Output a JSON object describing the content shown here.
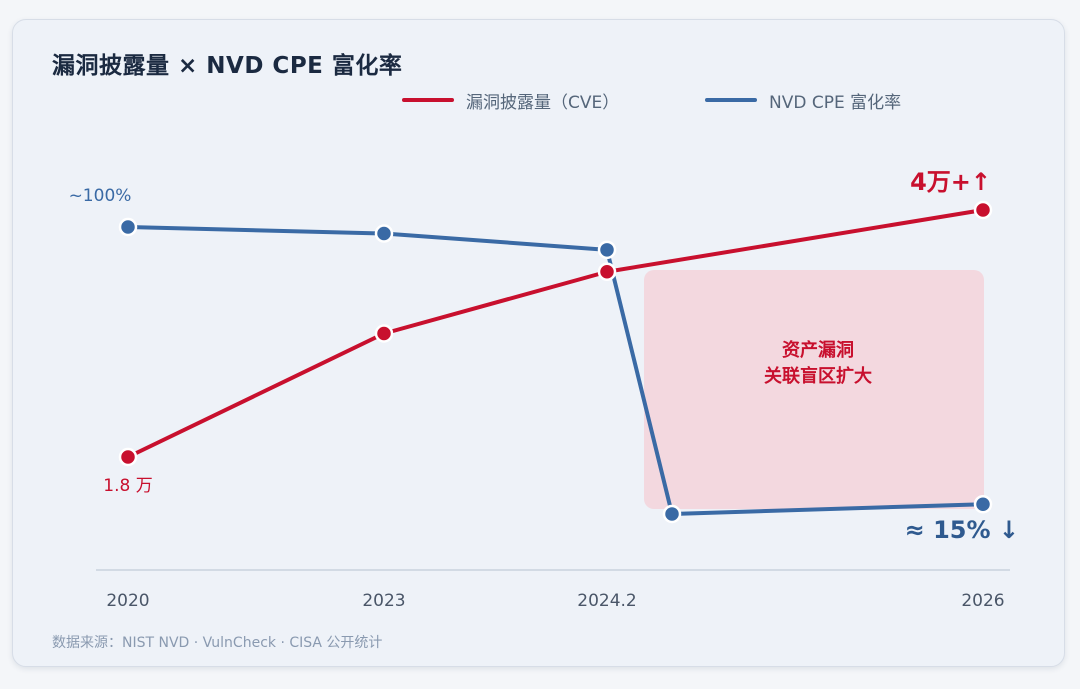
{
  "title": "漏洞披露量 × NVD CPE 富化率",
  "legend": [
    {
      "label": "漏洞披露量（CVE）",
      "color": "#c8102e"
    },
    {
      "label": "NVD CPE 富化率",
      "color": "#3a6aa5"
    }
  ],
  "footer": "数据来源：NIST NVD · VulnCheck · CISA 公开统计",
  "chart_data": {
    "type": "line",
    "title": "漏洞披露量 × NVD CPE 富化率",
    "categories": [
      "2020",
      "2023",
      "2024.2",
      "2026"
    ],
    "series": [
      {
        "name": "漏洞披露量（CVE）",
        "color": "#c8102e",
        "points": [
          {
            "x": "2020",
            "y": 18000
          },
          {
            "x": "2023",
            "y": 29000
          },
          {
            "x": "2024.2",
            "y": 34500
          },
          {
            "x": "2026",
            "y": 40000
          }
        ]
      },
      {
        "name": "NVD CPE 富化率",
        "color": "#3a6aa5",
        "points": [
          {
            "x": "2020",
            "y": 100
          },
          {
            "x": "2023",
            "y": 98
          },
          {
            "x": "2024.2",
            "y": 93
          },
          {
            "x": "2024.3",
            "y": 12
          },
          {
            "x": "2026",
            "y": 15
          }
        ]
      }
    ],
    "annotations": [
      {
        "text": "~100%",
        "series": "NVD CPE 富化率",
        "at": "2020",
        "color": "#3a6aa5"
      },
      {
        "text": "1.8 万",
        "series": "漏洞披露量（CVE）",
        "at": "2020",
        "color": "#c8102e"
      },
      {
        "text": "4万+↑",
        "series": "漏洞披露量（CVE）",
        "at": "2026",
        "color": "#c8102e"
      },
      {
        "text": "≈ 15% ↓",
        "series": "NVD CPE 富化率",
        "at": "2026",
        "color": "#2f5a8f"
      }
    ],
    "highlight": {
      "lines": [
        "资产漏洞",
        "关联盲区扩大"
      ],
      "from": "2024.2",
      "to": "2026",
      "fill": "#f3d3da",
      "text_color": "#c8102e"
    },
    "grid": false
  }
}
